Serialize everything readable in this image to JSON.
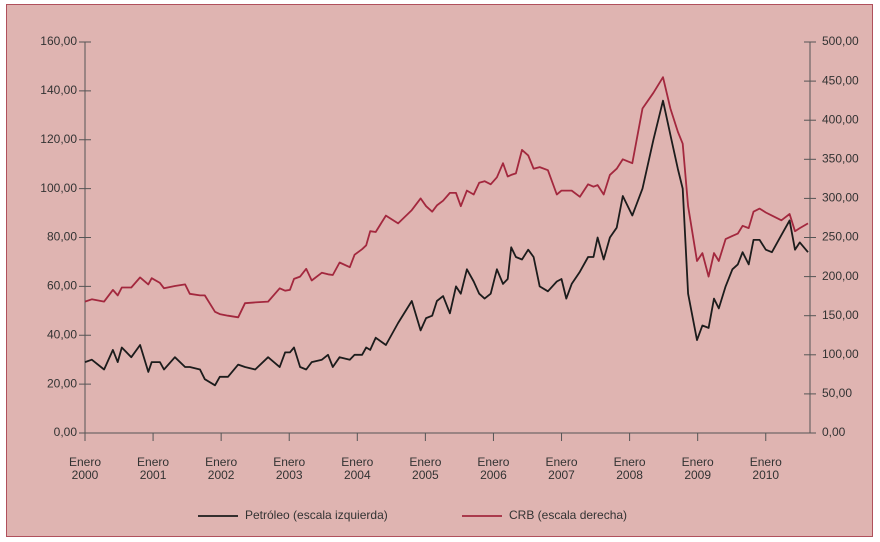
{
  "chart_data": {
    "type": "line",
    "x": [
      2000.0,
      2000.1,
      2000.28,
      2000.41,
      2000.48,
      2000.54,
      2000.68,
      2000.81,
      2000.93,
      2000.98,
      2001.1,
      2001.16,
      2001.32,
      2001.47,
      2001.54,
      2001.69,
      2001.76,
      2001.91,
      2001.98,
      2002.1,
      2002.25,
      2002.35,
      2002.5,
      2002.69,
      2002.86,
      2002.94,
      2003.01,
      2003.07,
      2003.16,
      2003.25,
      2003.33,
      2003.48,
      2003.57,
      2003.64,
      2003.74,
      2003.89,
      2003.96,
      2004.07,
      2004.13,
      2004.19,
      2004.27,
      2004.42,
      2004.6,
      2004.8,
      2004.93,
      2005.01,
      2005.1,
      2005.17,
      2005.26,
      2005.36,
      2005.45,
      2005.52,
      2005.61,
      2005.71,
      2005.79,
      2005.87,
      2005.96,
      2006.05,
      2006.14,
      2006.21,
      2006.26,
      2006.33,
      2006.42,
      2006.51,
      2006.59,
      2006.68,
      2006.8,
      2006.93,
      2007.0,
      2007.07,
      2007.15,
      2007.27,
      2007.39,
      2007.47,
      2007.53,
      2007.62,
      2007.71,
      2007.81,
      2007.9,
      2008.04,
      2008.19,
      2008.35,
      2008.49,
      2008.6,
      2008.71,
      2008.78,
      2008.86,
      2008.99,
      2009.07,
      2009.16,
      2009.24,
      2009.31,
      2009.41,
      2009.51,
      2009.59,
      2009.66,
      2009.75,
      2009.82,
      2009.91,
      2010.0,
      2010.09,
      2010.23,
      2010.35,
      2010.43,
      2010.5,
      2010.62
    ],
    "series": [
      {
        "name": "Petróleo (escala izquierda)",
        "color": "#1c1c1c",
        "values": [
          29,
          30,
          26,
          34,
          29,
          35,
          31,
          36,
          25,
          29,
          29,
          26,
          31,
          27,
          27,
          26,
          22,
          19.5,
          23,
          23,
          28,
          27,
          26,
          31,
          27,
          33,
          33,
          35,
          27,
          26,
          29,
          30,
          32,
          27,
          31,
          30,
          32,
          32,
          35,
          34,
          39,
          36,
          45,
          54,
          42,
          47,
          48,
          54,
          56,
          49,
          60,
          57,
          67,
          62,
          57,
          55,
          57,
          67,
          61,
          63,
          76,
          72,
          71,
          75,
          72,
          60,
          58,
          62,
          63,
          55,
          61,
          66,
          72,
          72,
          80,
          71,
          80,
          84,
          97,
          89,
          100,
          120,
          136,
          122,
          108,
          100,
          57,
          38,
          44,
          43,
          55,
          51,
          60,
          67,
          69,
          74,
          69,
          79,
          79,
          75,
          74,
          81,
          87,
          75,
          78,
          74
        ]
      },
      {
        "name": "CRB (escala derecha)",
        "color": "#a3283e",
        "axis": "y2",
        "values": [
          168,
          171,
          168,
          183,
          176,
          186,
          186,
          199,
          190,
          198,
          192,
          185,
          188,
          190,
          178,
          176,
          176,
          155,
          152,
          150,
          148,
          166,
          167,
          168,
          185,
          182,
          183,
          197,
          200,
          210,
          195,
          205,
          203,
          202,
          218,
          212,
          228,
          235,
          240,
          258,
          257,
          278,
          268,
          285,
          300,
          290,
          283,
          291,
          297,
          307,
          307,
          290,
          310,
          305,
          320,
          322,
          318,
          327,
          345,
          328,
          330,
          332,
          362,
          355,
          338,
          340,
          336,
          305,
          310,
          310,
          310,
          302,
          318,
          315,
          317,
          305,
          330,
          338,
          350,
          345,
          415,
          435,
          455,
          415,
          385,
          370,
          290,
          220,
          230,
          200,
          230,
          220,
          248,
          252,
          255,
          265,
          262,
          283,
          287,
          282,
          278,
          272,
          280,
          258,
          262,
          268
        ]
      }
    ],
    "xlim": [
      2000,
      2010.65
    ],
    "xticks": [
      {
        "value": 2000,
        "label": "Enero 2000"
      },
      {
        "value": 2001,
        "label": "Enero 2001"
      },
      {
        "value": 2002,
        "label": "Enero 2002"
      },
      {
        "value": 2003,
        "label": "Enero 2003"
      },
      {
        "value": 2004,
        "label": "Enero 2004"
      },
      {
        "value": 2005,
        "label": "Enero 2005"
      },
      {
        "value": 2006,
        "label": "Enero 2006"
      },
      {
        "value": 2007,
        "label": "Enero 2007"
      },
      {
        "value": 2008,
        "label": "Enero 2008"
      },
      {
        "value": 2009,
        "label": "Enero 2009"
      },
      {
        "value": 2010,
        "label": "Enero 2010"
      }
    ],
    "ylim": [
      0,
      160
    ],
    "yticks": [
      {
        "value": 0,
        "label": "0,00"
      },
      {
        "value": 20,
        "label": "20,00"
      },
      {
        "value": 40,
        "label": "40,00"
      },
      {
        "value": 60,
        "label": "60,00"
      },
      {
        "value": 80,
        "label": "80,00"
      },
      {
        "value": 100,
        "label": "100,00"
      },
      {
        "value": 120,
        "label": "120,00"
      },
      {
        "value": 140,
        "label": "140,00"
      },
      {
        "value": 160,
        "label": "160,00"
      }
    ],
    "y2lim": [
      0,
      500
    ],
    "y2ticks": [
      {
        "value": 0,
        "label": "0,00"
      },
      {
        "value": 50,
        "label": "50,00"
      },
      {
        "value": 100,
        "label": "100,00"
      },
      {
        "value": 150,
        "label": "150,00"
      },
      {
        "value": 200,
        "label": "200,00"
      },
      {
        "value": 250,
        "label": "250,00"
      },
      {
        "value": 300,
        "label": "300,00"
      },
      {
        "value": 350,
        "label": "350,00"
      },
      {
        "value": 400,
        "label": "400,00"
      },
      {
        "value": 450,
        "label": "450,00"
      },
      {
        "value": 500,
        "label": "500,00"
      }
    ],
    "legend": "bottom"
  }
}
